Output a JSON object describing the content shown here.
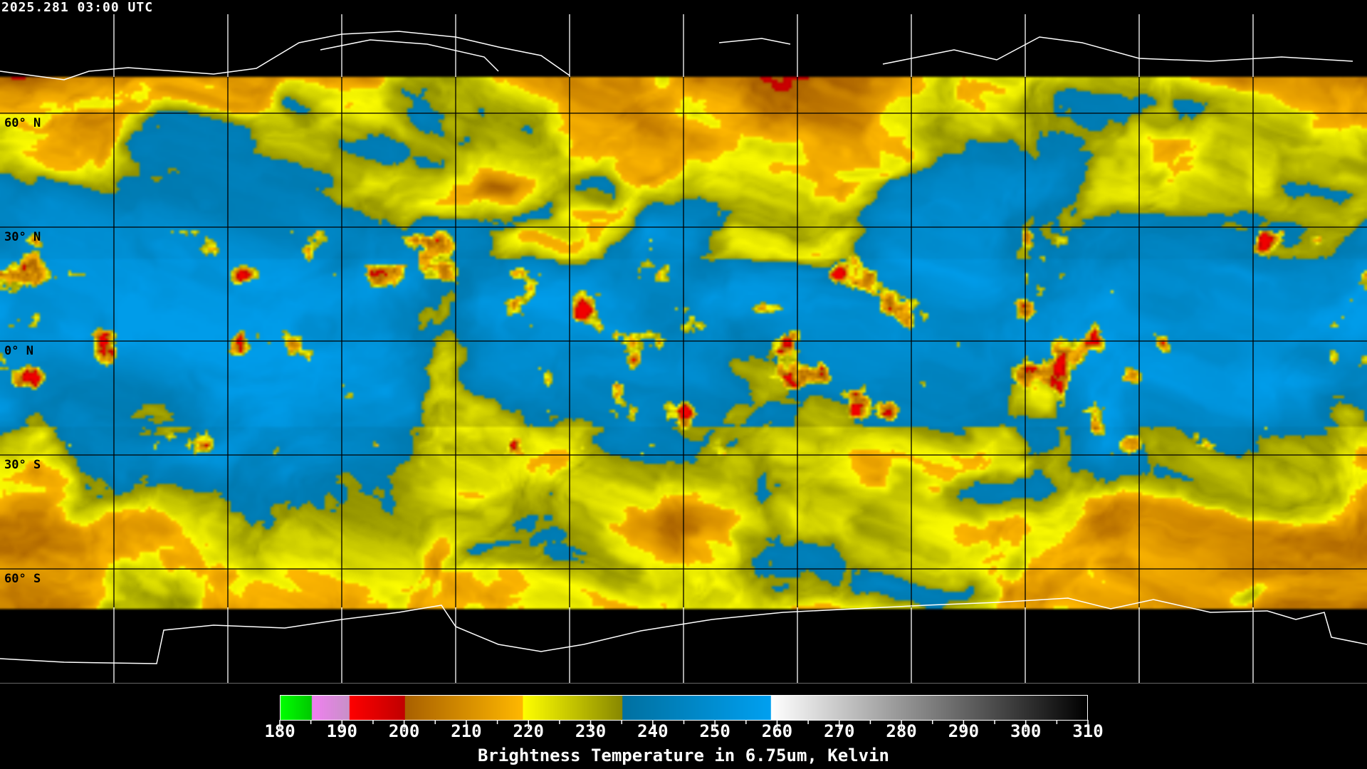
{
  "header": {
    "timestamp": "2025.281 03:00 UTC"
  },
  "map": {
    "projection": "equirectangular",
    "grid_spacing_deg": 30,
    "lat_labels": [
      "60° N",
      "30° N",
      "0° N",
      "30° S",
      "60° S"
    ],
    "colors": {
      "background": "#000000",
      "grid": "#000000",
      "polar_grid": "#ffffff",
      "coastline_data": "#000000",
      "coastline_polar": "#ffffff"
    }
  },
  "colorbar": {
    "min": 180,
    "max": 310,
    "tick_labels": [
      "180",
      "190",
      "200",
      "210",
      "220",
      "230",
      "240",
      "250",
      "260",
      "270",
      "280",
      "290",
      "300",
      "310"
    ],
    "title": "Brightness Temperature in 6.75um, Kelvin",
    "segments": [
      {
        "from": 180,
        "to": 185,
        "c0": "#00ff00",
        "c1": "#00c800"
      },
      {
        "from": 185,
        "to": 191,
        "c0": "#f080f0",
        "c1": "#c890c8"
      },
      {
        "from": 191,
        "to": 200,
        "c0": "#ff0000",
        "c1": "#c00000"
      },
      {
        "from": 200,
        "to": 219,
        "c0": "#a86000",
        "c1": "#ffb800"
      },
      {
        "from": 219,
        "to": 235,
        "c0": "#ffff00",
        "c1": "#888800"
      },
      {
        "from": 235,
        "to": 259,
        "c0": "#0070a0",
        "c1": "#00a0f0"
      },
      {
        "from": 259,
        "to": 310,
        "c0": "#ffffff",
        "c1": "#000000"
      }
    ]
  }
}
